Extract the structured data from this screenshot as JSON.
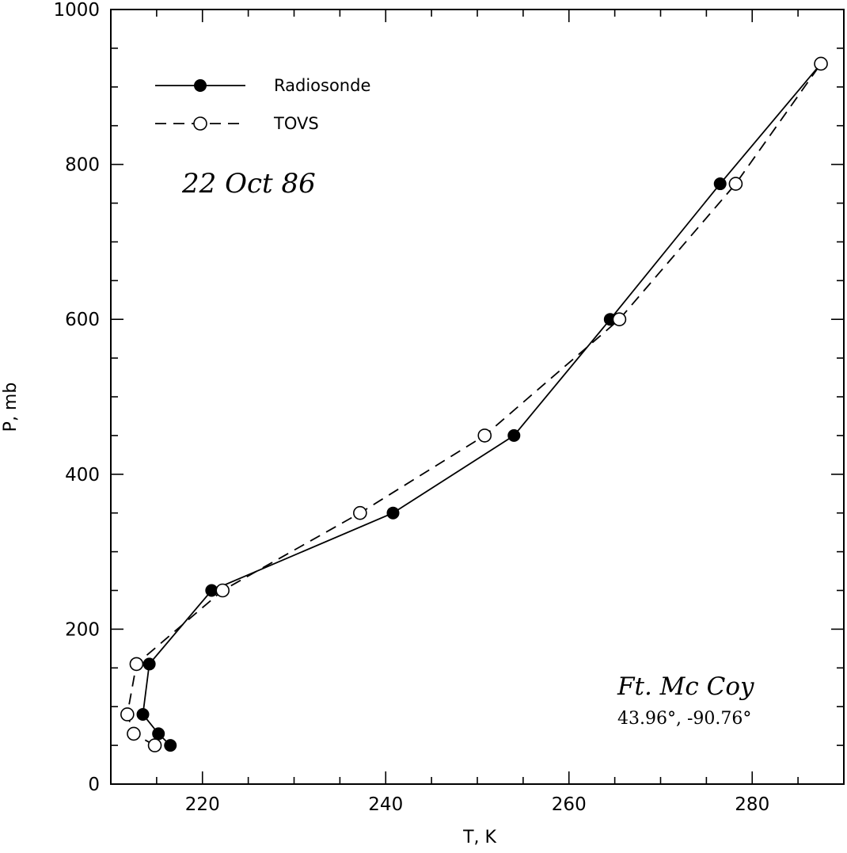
{
  "chart_data": {
    "type": "line",
    "xlabel": "T, K",
    "ylabel": "P, mb",
    "xlim": [
      210,
      290
    ],
    "ylim": [
      0,
      1000
    ],
    "x_ticks": [
      220,
      240,
      260,
      280
    ],
    "y_ticks": [
      0,
      200,
      400,
      600,
      800,
      1000
    ],
    "grid": false,
    "legend_position": "top-left",
    "annotations": {
      "date": "22 Oct 86",
      "station": "Ft. Mc Coy",
      "coordinates": "43.96°, -90.76°"
    },
    "series": [
      {
        "name": "Radiosonde",
        "line_style": "solid",
        "marker": "filled-circle",
        "color": "#000000",
        "points": [
          {
            "x": 216.5,
            "y": 50
          },
          {
            "x": 215.2,
            "y": 65
          },
          {
            "x": 213.5,
            "y": 90
          },
          {
            "x": 214.2,
            "y": 155
          },
          {
            "x": 221.0,
            "y": 250
          },
          {
            "x": 240.8,
            "y": 350
          },
          {
            "x": 254.0,
            "y": 450
          },
          {
            "x": 264.5,
            "y": 600
          },
          {
            "x": 276.5,
            "y": 775
          },
          {
            "x": 287.5,
            "y": 930
          }
        ]
      },
      {
        "name": "TOVS",
        "line_style": "dashed",
        "marker": "open-circle",
        "color": "#000000",
        "points": [
          {
            "x": 214.8,
            "y": 50
          },
          {
            "x": 212.5,
            "y": 65
          },
          {
            "x": 211.8,
            "y": 90
          },
          {
            "x": 212.8,
            "y": 155
          },
          {
            "x": 222.2,
            "y": 250
          },
          {
            "x": 237.2,
            "y": 350
          },
          {
            "x": 250.8,
            "y": 450
          },
          {
            "x": 265.5,
            "y": 600
          },
          {
            "x": 278.2,
            "y": 775
          },
          {
            "x": 287.5,
            "y": 930
          }
        ]
      }
    ]
  }
}
